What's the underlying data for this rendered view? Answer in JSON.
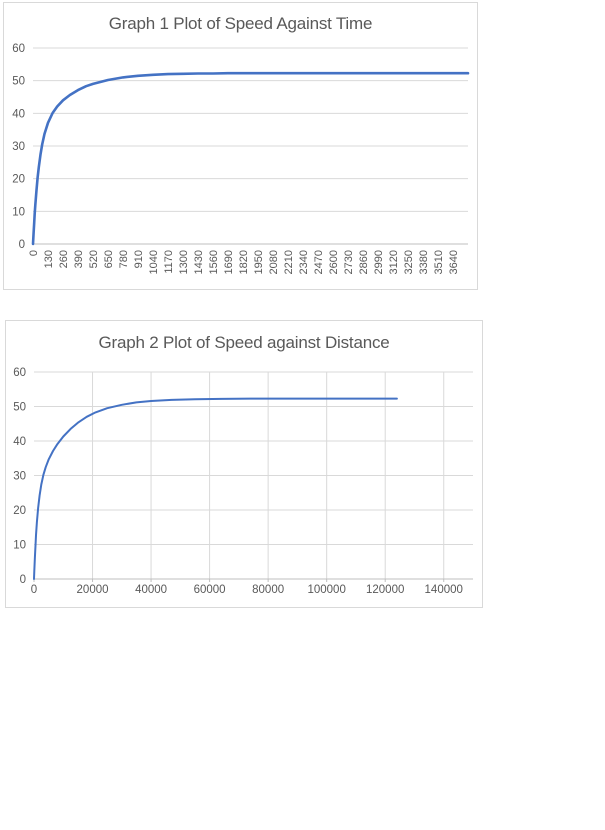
{
  "colors": {
    "series_line": "#4472C4",
    "gridline": "#D9D9D9",
    "axis_line": "#BFBFBF",
    "text": "#595959",
    "chart_border": "#D9D9D9",
    "chart_background": "#FFFFFF"
  },
  "chart_data": [
    {
      "type": "line",
      "title": "Graph 1 Plot of Speed Against Time",
      "legend": "none",
      "x_axis": {
        "min": 0,
        "max": 3770,
        "tick_labels": [
          0,
          130,
          260,
          390,
          520,
          650,
          780,
          910,
          1040,
          1170,
          1300,
          1430,
          1560,
          1690,
          1820,
          1950,
          2080,
          2210,
          2340,
          2470,
          2600,
          2730,
          2860,
          2990,
          3120,
          3250,
          3380,
          3510,
          3640
        ],
        "label_rotation_deg": -90,
        "gridlines": false
      },
      "y_axis": {
        "min": 0,
        "max": 60,
        "tick_labels": [
          0,
          10,
          20,
          30,
          40,
          50,
          60
        ],
        "gridlines": true
      },
      "series": [
        {
          "name": "Speed",
          "color": "#4472C4",
          "points": [
            [
              0,
              0
            ],
            [
              5,
              3.4
            ],
            [
              10,
              6.5
            ],
            [
              15,
              9.3
            ],
            [
              20,
              11.9
            ],
            [
              30,
              16.5
            ],
            [
              40,
              20.3
            ],
            [
              50,
              23.5
            ],
            [
              65,
              27.4
            ],
            [
              80,
              30.5
            ],
            [
              100,
              33.7
            ],
            [
              130,
              37.1
            ],
            [
              170,
              40.1
            ],
            [
              210,
              42.1
            ],
            [
              260,
              44.0
            ],
            [
              320,
              45.6
            ],
            [
              390,
              47.1
            ],
            [
              460,
              48.3
            ],
            [
              520,
              49.0
            ],
            [
              650,
              50.2
            ],
            [
              780,
              51.0
            ],
            [
              910,
              51.5
            ],
            [
              1040,
              51.8
            ],
            [
              1170,
              52.0
            ],
            [
              1300,
              52.1
            ],
            [
              1430,
              52.2
            ],
            [
              1560,
              52.2
            ],
            [
              1690,
              52.3
            ],
            [
              1950,
              52.3
            ],
            [
              2210,
              52.3
            ],
            [
              2470,
              52.3
            ],
            [
              2730,
              52.3
            ],
            [
              2990,
              52.3
            ],
            [
              3250,
              52.3
            ],
            [
              3510,
              52.3
            ],
            [
              3770,
              52.3
            ]
          ]
        }
      ]
    },
    {
      "type": "line",
      "title": "Graph 2 Plot of Speed against Distance",
      "legend": "none",
      "x_axis": {
        "min": 0,
        "max": 150000,
        "tick_labels": [
          0,
          20000,
          40000,
          60000,
          80000,
          100000,
          120000,
          140000
        ],
        "label_rotation_deg": 0,
        "gridlines": true
      },
      "y_axis": {
        "min": 0,
        "max": 60,
        "tick_labels": [
          0,
          10,
          20,
          30,
          40,
          50,
          60
        ],
        "gridlines": true
      },
      "series": [
        {
          "name": "Speed",
          "color": "#4472C4",
          "points": [
            [
              0,
              0
            ],
            [
              100,
              2.3
            ],
            [
              200,
              4.3
            ],
            [
              300,
              6.3
            ],
            [
              500,
              9.7
            ],
            [
              700,
              12.7
            ],
            [
              1000,
              16.5
            ],
            [
              1400,
              20.5
            ],
            [
              1900,
              24.2
            ],
            [
              2500,
              27.4
            ],
            [
              3200,
              30.2
            ],
            [
              4000,
              32.4
            ],
            [
              5000,
              34.6
            ],
            [
              6500,
              37.1
            ],
            [
              8000,
              39.1
            ],
            [
              10000,
              41.3
            ],
            [
              12500,
              43.5
            ],
            [
              15000,
              45.3
            ],
            [
              18000,
              47.0
            ],
            [
              21000,
              48.3
            ],
            [
              25000,
              49.5
            ],
            [
              30000,
              50.5
            ],
            [
              35000,
              51.2
            ],
            [
              40000,
              51.6
            ],
            [
              47000,
              51.9
            ],
            [
              55000,
              52.1
            ],
            [
              64000,
              52.2
            ],
            [
              74000,
              52.3
            ],
            [
              85000,
              52.3
            ],
            [
              97000,
              52.3
            ],
            [
              110000,
              52.3
            ],
            [
              124000,
              52.3
            ]
          ]
        }
      ]
    }
  ]
}
